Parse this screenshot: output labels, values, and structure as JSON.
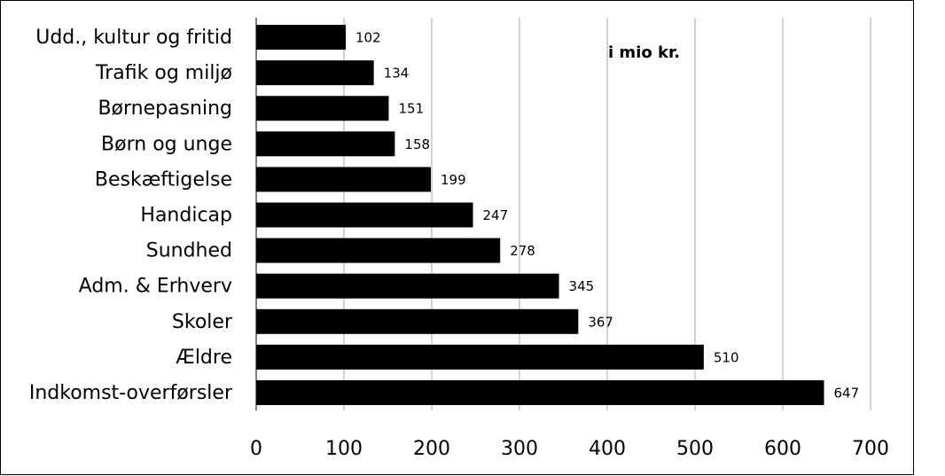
{
  "chart_data": {
    "type": "bar",
    "orientation": "horizontal",
    "annotation": "i mio kr.",
    "categories": [
      "Udd., kultur og fritid",
      "Trafik og miljø",
      "Børnepasning",
      "Børn og unge",
      "Beskæftigelse",
      "Handicap",
      "Sundhed",
      "Adm. & Erhverv",
      "Skoler",
      "Ældre",
      "Indkomst-overførsler"
    ],
    "values": [
      102,
      134,
      151,
      158,
      199,
      247,
      278,
      345,
      367,
      510,
      647
    ],
    "color": "#000000",
    "xlim": [
      0,
      700
    ],
    "xticks": [
      0,
      100,
      200,
      300,
      400,
      500,
      600,
      700
    ],
    "grid": true
  }
}
